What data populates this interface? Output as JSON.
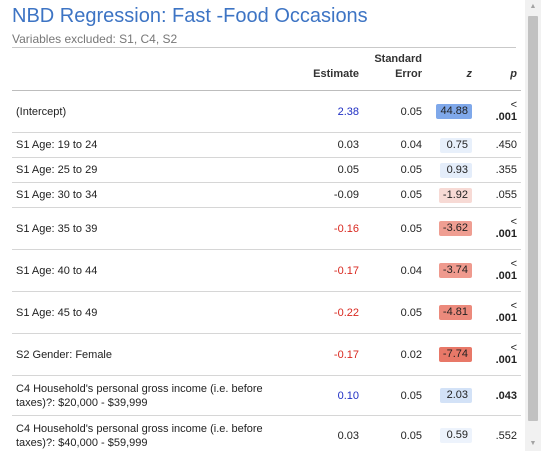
{
  "title": "NBD Regression: Fast -Food Occasions",
  "subtitle": "Variables excluded: S1, C4, S2",
  "columns": {
    "estimate": "Estimate",
    "se_line1": "Standard",
    "se_line2": "Error",
    "z": "z",
    "p": "p"
  },
  "colors": {
    "title": "#3d74c4",
    "positive_estimate": "#1f2fc4",
    "negative_estimate": "#d9281f",
    "z_strong_positive": "#7fa8ea",
    "z_light_positive": "#dde8f8",
    "z_light_negative": "#f6d3ce",
    "z_strong_negative": "#ec8e80"
  },
  "rows": [
    {
      "label": "(Intercept)",
      "estimate": "2.38",
      "est_color": "#1f2fc4",
      "se": "0.05",
      "z": "44.88",
      "z_bg": "#7fa8ea",
      "p_lt": "<",
      "p": ".001",
      "p_bold": true
    },
    {
      "label": "S1 Age: 19 to 24",
      "estimate": "0.03",
      "est_color": "#222222",
      "se": "0.04",
      "z": "0.75",
      "z_bg": "#e8f0fb",
      "p_lt": "",
      "p": ".450",
      "p_bold": false
    },
    {
      "label": "S1 Age: 25 to 29",
      "estimate": "0.05",
      "est_color": "#222222",
      "se": "0.05",
      "z": "0.93",
      "z_bg": "#e4edfa",
      "p_lt": "",
      "p": ".355",
      "p_bold": false
    },
    {
      "label": "S1 Age: 30 to 34",
      "estimate": "-0.09",
      "est_color": "#222222",
      "se": "0.05",
      "z": "-1.92",
      "z_bg": "#f7dad5",
      "p_lt": "",
      "p": ".055",
      "p_bold": false
    },
    {
      "label": "S1 Age: 35 to 39",
      "estimate": "-0.16",
      "est_color": "#d9281f",
      "se": "0.05",
      "z": "-3.62",
      "z_bg": "#ef9e92",
      "p_lt": "<",
      "p": ".001",
      "p_bold": true
    },
    {
      "label": "S1 Age: 40 to 44",
      "estimate": "-0.17",
      "est_color": "#d9281f",
      "se": "0.04",
      "z": "-3.74",
      "z_bg": "#ef9a8e",
      "p_lt": "<",
      "p": ".001",
      "p_bold": true
    },
    {
      "label": "S1 Age: 45 to 49",
      "estimate": "-0.22",
      "est_color": "#d9281f",
      "se": "0.05",
      "z": "-4.81",
      "z_bg": "#ec8a7c",
      "p_lt": "<",
      "p": ".001",
      "p_bold": true
    },
    {
      "label": "S2 Gender: Female",
      "estimate": "-0.17",
      "est_color": "#d9281f",
      "se": "0.02",
      "z": "-7.74",
      "z_bg": "#e87868",
      "p_lt": "<",
      "p": ".001",
      "p_bold": true
    },
    {
      "label": "C4 Household's personal gross income (i.e. before taxes)?: $20,000 - $39,999",
      "estimate": "0.10",
      "est_color": "#1f2fc4",
      "se": "0.05",
      "z": "2.03",
      "z_bg": "#d3e2f7",
      "p_lt": "",
      "p": ".043",
      "p_bold": true
    },
    {
      "label": "C4 Household's personal gross income (i.e. before taxes)?: $40,000 - $59,999",
      "estimate": "0.03",
      "est_color": "#222222",
      "se": "0.05",
      "z": "0.59",
      "z_bg": "#edf3fc",
      "p_lt": "",
      "p": ".552",
      "p_bold": false
    }
  ]
}
